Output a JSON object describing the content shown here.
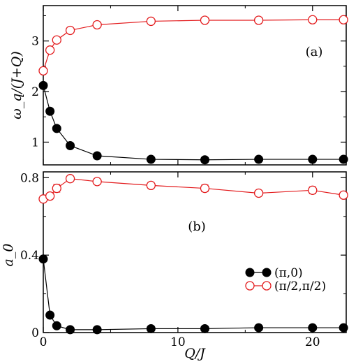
{
  "chart_data": [
    {
      "type": "line",
      "panel_label": "(a)",
      "xlabel": "",
      "ylabel": "ω_q/(J+Q)",
      "xlim": [
        0,
        22.5
      ],
      "ylim": [
        0.55,
        3.7
      ],
      "xticks": [
        0,
        10,
        20
      ],
      "yticks": [
        1,
        2,
        3
      ],
      "xtick_labels_shown": false,
      "series": [
        {
          "name": "(π,0)",
          "color": "#000000",
          "marker": "filled-circle",
          "x": [
            0,
            0.5,
            1,
            2,
            4,
            8,
            12,
            16,
            20,
            22.3
          ],
          "y": [
            2.12,
            1.61,
            1.27,
            0.93,
            0.73,
            0.66,
            0.65,
            0.66,
            0.66,
            0.66
          ]
        },
        {
          "name": "(π/2,π/2)",
          "color": "#e31a1c",
          "marker": "open-circle",
          "x": [
            0,
            0.5,
            1,
            2,
            4,
            8,
            12,
            16,
            20,
            22.3
          ],
          "y": [
            2.41,
            2.82,
            3.02,
            3.21,
            3.32,
            3.39,
            3.41,
            3.41,
            3.42,
            3.42
          ]
        }
      ]
    },
    {
      "type": "line",
      "panel_label": "(b)",
      "xlabel": "Q/J",
      "ylabel": "a_0",
      "xlim": [
        0,
        22.5
      ],
      "ylim": [
        0,
        0.83
      ],
      "xticks": [
        0,
        10,
        20
      ],
      "xtick_labels": [
        "0",
        "10",
        "20"
      ],
      "yticks": [
        0,
        0.4,
        0.8
      ],
      "ytick_labels": [
        "0",
        "0.4",
        "0.8"
      ],
      "legend": {
        "placement": "center-right",
        "entries": [
          "(π,0)",
          "(π/2,π/2)"
        ]
      },
      "series": [
        {
          "name": "(π,0)",
          "color": "#000000",
          "marker": "filled-circle",
          "x": [
            0,
            0.5,
            1,
            2,
            4,
            8,
            12,
            16,
            20,
            22.3
          ],
          "y": [
            0.38,
            0.09,
            0.035,
            0.015,
            0.015,
            0.02,
            0.02,
            0.025,
            0.025,
            0.025
          ]
        },
        {
          "name": "(π/2,π/2)",
          "color": "#e31a1c",
          "marker": "open-circle",
          "x": [
            0,
            0.5,
            1,
            2,
            4,
            8,
            12,
            16,
            20,
            22.3
          ],
          "y": [
            0.69,
            0.705,
            0.745,
            0.795,
            0.78,
            0.76,
            0.745,
            0.72,
            0.735,
            0.71
          ],
          "yerr": [
            0.015,
            0.015,
            0.02,
            0.015,
            0.012,
            0.015,
            0.018,
            0.012,
            0.018,
            0.015
          ]
        }
      ]
    }
  ]
}
